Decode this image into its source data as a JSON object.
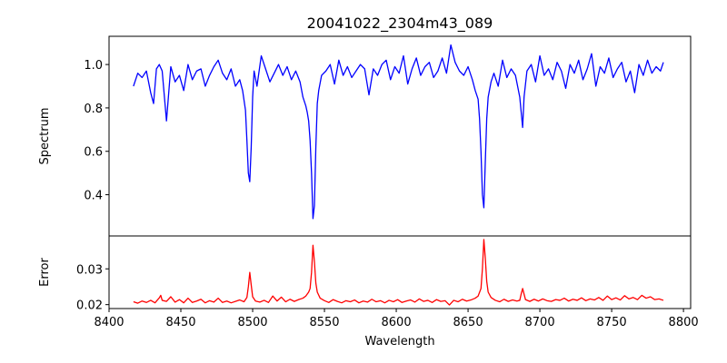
{
  "figure": {
    "background": "#ffffff"
  },
  "chart_data": {
    "type": "line",
    "title": "20041022_2304m43_089",
    "xlabel": "Wavelength",
    "xlim": [
      8400,
      8805
    ],
    "xticks": [
      8400,
      8450,
      8500,
      8550,
      8600,
      8650,
      8700,
      8750,
      8800
    ],
    "xtick_labels": [
      "8400",
      "8450",
      "8500",
      "8550",
      "8600",
      "8650",
      "8700",
      "8750",
      "8800"
    ],
    "grid": false,
    "panels": [
      {
        "id": "spectrum",
        "ylabel": "Spectrum",
        "ylim": [
          0.21,
          1.13
        ],
        "yticks": [
          0.4,
          0.6,
          0.8,
          1.0
        ],
        "ytick_labels": [
          "0.4",
          "0.6",
          "0.8",
          "1.0"
        ],
        "series": [
          {
            "color": "#0000ff",
            "x": [
              8417,
              8420,
              8423,
              8426,
              8429,
              8431,
              8433,
              8435,
              8437,
              8440,
              8443,
              8446,
              8449,
              8452,
              8455,
              8458,
              8461,
              8464,
              8467,
              8470,
              8473,
              8476,
              8479,
              8482,
              8485,
              8488,
              8491,
              8493,
              8495,
              8496,
              8497,
              8498,
              8499,
              8500,
              8501,
              8503,
              8506,
              8509,
              8512,
              8515,
              8518,
              8521,
              8524,
              8527,
              8530,
              8533,
              8535,
              8537,
              8538,
              8539,
              8540,
              8541,
              8542,
              8543,
              8544,
              8545,
              8546,
              8548,
              8551,
              8554,
              8557,
              8560,
              8563,
              8566,
              8569,
              8572,
              8575,
              8578,
              8581,
              8584,
              8587,
              8590,
              8593,
              8596,
              8599,
              8602,
              8605,
              8608,
              8611,
              8614,
              8617,
              8620,
              8623,
              8626,
              8629,
              8632,
              8635,
              8638,
              8641,
              8644,
              8647,
              8650,
              8653,
              8655,
              8657,
              8658,
              8659,
              8660,
              8661,
              8662,
              8663,
              8664,
              8666,
              8668,
              8671,
              8674,
              8677,
              8680,
              8683,
              8686,
              8687,
              8688,
              8689,
              8691,
              8694,
              8697,
              8700,
              8703,
              8706,
              8709,
              8712,
              8715,
              8718,
              8721,
              8724,
              8727,
              8730,
              8733,
              8736,
              8739,
              8742,
              8745,
              8748,
              8751,
              8754,
              8757,
              8760,
              8763,
              8766,
              8769,
              8772,
              8775,
              8778,
              8781,
              8784,
              8786
            ],
            "y": [
              0.9,
              0.96,
              0.94,
              0.97,
              0.87,
              0.82,
              0.98,
              1.0,
              0.97,
              0.74,
              0.99,
              0.92,
              0.95,
              0.88,
              1.0,
              0.93,
              0.97,
              0.98,
              0.9,
              0.95,
              0.99,
              1.02,
              0.96,
              0.93,
              0.98,
              0.9,
              0.93,
              0.88,
              0.79,
              0.65,
              0.5,
              0.46,
              0.62,
              0.85,
              0.97,
              0.9,
              1.04,
              0.98,
              0.92,
              0.96,
              1.0,
              0.95,
              0.99,
              0.93,
              0.97,
              0.92,
              0.85,
              0.81,
              0.78,
              0.74,
              0.65,
              0.5,
              0.29,
              0.35,
              0.62,
              0.82,
              0.88,
              0.95,
              0.97,
              1.0,
              0.91,
              1.02,
              0.95,
              0.99,
              0.94,
              0.97,
              1.0,
              0.98,
              0.86,
              0.98,
              0.95,
              1.0,
              1.02,
              0.93,
              0.99,
              0.96,
              1.04,
              0.91,
              0.98,
              1.03,
              0.95,
              0.99,
              1.01,
              0.94,
              0.97,
              1.03,
              0.96,
              1.09,
              1.01,
              0.97,
              0.95,
              0.99,
              0.93,
              0.88,
              0.84,
              0.75,
              0.6,
              0.4,
              0.34,
              0.55,
              0.75,
              0.85,
              0.92,
              0.96,
              0.9,
              1.02,
              0.94,
              0.98,
              0.95,
              0.85,
              0.78,
              0.71,
              0.85,
              0.97,
              1.0,
              0.92,
              1.04,
              0.95,
              0.98,
              0.93,
              1.01,
              0.97,
              0.89,
              1.0,
              0.96,
              1.02,
              0.93,
              0.98,
              1.05,
              0.9,
              0.99,
              0.96,
              1.03,
              0.94,
              0.98,
              1.01,
              0.92,
              0.97,
              0.87,
              1.0,
              0.95,
              1.02,
              0.96,
              0.99,
              0.97,
              1.01
            ]
          }
        ]
      },
      {
        "id": "error",
        "ylabel": "Error",
        "ylim": [
          0.0189,
          0.0392
        ],
        "yticks": [
          0.02,
          0.03
        ],
        "ytick_labels": [
          "0.02",
          "0.03"
        ],
        "series": [
          {
            "color": "#ff0000",
            "x": [
              8417,
              8420,
              8423,
              8426,
              8429,
              8432,
              8435,
              8436,
              8437,
              8440,
              8443,
              8446,
              8449,
              8452,
              8455,
              8458,
              8461,
              8464,
              8467,
              8470,
              8473,
              8476,
              8479,
              8482,
              8485,
              8488,
              8491,
              8494,
              8496,
              8497,
              8498,
              8499,
              8500,
              8502,
              8505,
              8508,
              8511,
              8514,
              8517,
              8520,
              8523,
              8526,
              8529,
              8532,
              8535,
              8537,
              8539,
              8540,
              8541,
              8542,
              8543,
              8544,
              8545,
              8547,
              8550,
              8553,
              8556,
              8559,
              8562,
              8565,
              8568,
              8571,
              8574,
              8577,
              8580,
              8583,
              8586,
              8589,
              8592,
              8595,
              8598,
              8601,
              8604,
              8607,
              8610,
              8613,
              8616,
              8619,
              8622,
              8625,
              8628,
              8631,
              8634,
              8637,
              8640,
              8643,
              8646,
              8649,
              8652,
              8655,
              8657,
              8659,
              8660,
              8661,
              8662,
              8663,
              8664,
              8666,
              8669,
              8672,
              8675,
              8678,
              8681,
              8684,
              8686,
              8687,
              8688,
              8690,
              8693,
              8696,
              8699,
              8702,
              8705,
              8708,
              8711,
              8714,
              8717,
              8720,
              8723,
              8726,
              8729,
              8732,
              8735,
              8738,
              8741,
              8744,
              8747,
              8750,
              8753,
              8756,
              8759,
              8762,
              8765,
              8768,
              8771,
              8774,
              8777,
              8780,
              8783,
              8786
            ],
            "y": [
              0.0208,
              0.0204,
              0.021,
              0.0206,
              0.0212,
              0.0205,
              0.0219,
              0.0226,
              0.0212,
              0.0209,
              0.0222,
              0.0207,
              0.0214,
              0.0205,
              0.0218,
              0.0206,
              0.021,
              0.0215,
              0.0205,
              0.0211,
              0.0207,
              0.0218,
              0.0206,
              0.021,
              0.0205,
              0.0209,
              0.0213,
              0.0208,
              0.022,
              0.025,
              0.029,
              0.0255,
              0.0222,
              0.021,
              0.0207,
              0.0212,
              0.0206,
              0.0224,
              0.021,
              0.0221,
              0.0208,
              0.0215,
              0.0209,
              0.0214,
              0.0218,
              0.0224,
              0.0235,
              0.0245,
              0.029,
              0.0366,
              0.032,
              0.026,
              0.0235,
              0.0218,
              0.0211,
              0.0206,
              0.0214,
              0.0209,
              0.0205,
              0.0211,
              0.0208,
              0.0213,
              0.0205,
              0.021,
              0.0207,
              0.0215,
              0.0208,
              0.0211,
              0.0205,
              0.0212,
              0.0208,
              0.0214,
              0.0206,
              0.021,
              0.0213,
              0.0207,
              0.0216,
              0.0209,
              0.0212,
              0.0206,
              0.0214,
              0.0209,
              0.0211,
              0.0199,
              0.0212,
              0.0208,
              0.0215,
              0.021,
              0.0213,
              0.0218,
              0.0224,
              0.0245,
              0.03,
              0.0382,
              0.033,
              0.0265,
              0.0235,
              0.022,
              0.0212,
              0.0208,
              0.0215,
              0.0209,
              0.0213,
              0.021,
              0.0212,
              0.023,
              0.0245,
              0.0214,
              0.0209,
              0.0215,
              0.021,
              0.0216,
              0.0211,
              0.0209,
              0.0214,
              0.0212,
              0.0218,
              0.021,
              0.0215,
              0.0212,
              0.0219,
              0.0211,
              0.0216,
              0.0213,
              0.022,
              0.0212,
              0.0224,
              0.0214,
              0.0219,
              0.0213,
              0.0225,
              0.0216,
              0.022,
              0.0214,
              0.0226,
              0.0218,
              0.0222,
              0.0214,
              0.0216,
              0.0212
            ]
          }
        ]
      }
    ]
  }
}
